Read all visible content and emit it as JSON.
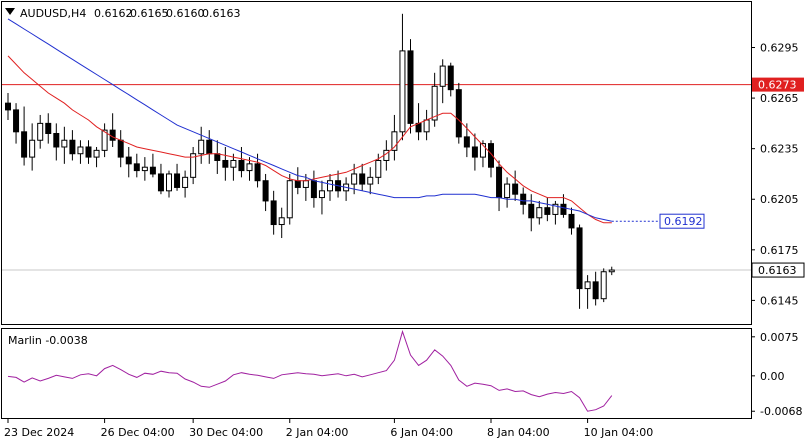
{
  "chart_data": [
    {
      "type": "candlestick",
      "symbol_label": "AUDUSD,H4",
      "ohlc_header": [
        "0.6162",
        "0.6165",
        "0.6160",
        "0.6163"
      ],
      "x_tick_labels": [
        "23 Dec 2024",
        "26 Dec 04:00",
        "30 Dec 04:00",
        "2 Jan 04:00",
        "6 Jan 04:00",
        "8 Jan 04:00",
        "10 Jan 04:00"
      ],
      "y_tick_labels": [
        "0.6295",
        "0.6265",
        "0.6235",
        "0.6205",
        "0.6175",
        "0.6145"
      ],
      "ylim": [
        0.6131,
        0.6322
      ],
      "grid": false,
      "horizontal_line": {
        "value": 0.6273,
        "label": "0.6273",
        "color": "#e02020"
      },
      "current_price": {
        "value": 0.6163,
        "label": "0.6163"
      },
      "ma_value_label": {
        "value": 0.6192,
        "label": "0.6192",
        "color": "#2030d0"
      },
      "candles": [
        [
          0.6262,
          0.6268,
          0.6252,
          0.6258
        ],
        [
          0.6258,
          0.6262,
          0.6238,
          0.6245
        ],
        [
          0.6245,
          0.626,
          0.6225,
          0.623
        ],
        [
          0.623,
          0.625,
          0.6222,
          0.624
        ],
        [
          0.624,
          0.6255,
          0.6235,
          0.625
        ],
        [
          0.625,
          0.6256,
          0.6238,
          0.6244
        ],
        [
          0.6244,
          0.625,
          0.6228,
          0.6236
        ],
        [
          0.6236,
          0.6248,
          0.6226,
          0.624
        ],
        [
          0.624,
          0.6246,
          0.6228,
          0.6232
        ],
        [
          0.6232,
          0.624,
          0.6226,
          0.6236
        ],
        [
          0.6236,
          0.624,
          0.6226,
          0.623
        ],
        [
          0.623,
          0.6236,
          0.6224,
          0.6234
        ],
        [
          0.6234,
          0.625,
          0.623,
          0.6246
        ],
        [
          0.6246,
          0.6256,
          0.6236,
          0.624
        ],
        [
          0.624,
          0.6246,
          0.6224,
          0.623
        ],
        [
          0.623,
          0.6236,
          0.6218,
          0.6226
        ],
        [
          0.6226,
          0.6232,
          0.6218,
          0.6222
        ],
        [
          0.6222,
          0.623,
          0.6216,
          0.6224
        ],
        [
          0.6224,
          0.6232,
          0.6218,
          0.622
        ],
        [
          0.622,
          0.6226,
          0.6208,
          0.621
        ],
        [
          0.621,
          0.6222,
          0.6206,
          0.622
        ],
        [
          0.622,
          0.6226,
          0.621,
          0.6212
        ],
        [
          0.6212,
          0.6222,
          0.6206,
          0.6218
        ],
        [
          0.6218,
          0.6236,
          0.6214,
          0.6232
        ],
        [
          0.6232,
          0.6248,
          0.6226,
          0.624
        ],
        [
          0.624,
          0.6246,
          0.6226,
          0.6232
        ],
        [
          0.6232,
          0.624,
          0.622,
          0.6228
        ],
        [
          0.6228,
          0.6236,
          0.6216,
          0.6224
        ],
        [
          0.6224,
          0.6232,
          0.6216,
          0.6228
        ],
        [
          0.6228,
          0.6236,
          0.6218,
          0.6222
        ],
        [
          0.6222,
          0.623,
          0.6216,
          0.6226
        ],
        [
          0.6226,
          0.6232,
          0.6212,
          0.6216
        ],
        [
          0.6216,
          0.622,
          0.6198,
          0.6204
        ],
        [
          0.6204,
          0.621,
          0.6184,
          0.619
        ],
        [
          0.619,
          0.62,
          0.6182,
          0.6194
        ],
        [
          0.6194,
          0.622,
          0.619,
          0.6216
        ],
        [
          0.6216,
          0.6224,
          0.6208,
          0.6212
        ],
        [
          0.6212,
          0.622,
          0.6204,
          0.6216
        ],
        [
          0.6216,
          0.6222,
          0.62,
          0.6206
        ],
        [
          0.6206,
          0.6216,
          0.6196,
          0.621
        ],
        [
          0.621,
          0.622,
          0.6204,
          0.6216
        ],
        [
          0.6216,
          0.6222,
          0.6206,
          0.621
        ],
        [
          0.621,
          0.6218,
          0.6204,
          0.6214
        ],
        [
          0.6214,
          0.6226,
          0.6208,
          0.622
        ],
        [
          0.622,
          0.6226,
          0.621,
          0.6214
        ],
        [
          0.6214,
          0.6224,
          0.6208,
          0.6218
        ],
        [
          0.6218,
          0.6232,
          0.6214,
          0.6228
        ],
        [
          0.6228,
          0.624,
          0.6222,
          0.6234
        ],
        [
          0.6234,
          0.6255,
          0.6228,
          0.6245
        ],
        [
          0.6245,
          0.6315,
          0.624,
          0.6293
        ],
        [
          0.6293,
          0.63,
          0.6244,
          0.625
        ],
        [
          0.625,
          0.6262,
          0.624,
          0.6245
        ],
        [
          0.6245,
          0.6258,
          0.624,
          0.6252
        ],
        [
          0.6252,
          0.628,
          0.6248,
          0.6272
        ],
        [
          0.6272,
          0.6288,
          0.6262,
          0.6284
        ],
        [
          0.6284,
          0.6286,
          0.6266,
          0.627
        ],
        [
          0.627,
          0.6274,
          0.6238,
          0.6242
        ],
        [
          0.6242,
          0.625,
          0.623,
          0.6236
        ],
        [
          0.6236,
          0.6244,
          0.6222,
          0.623
        ],
        [
          0.623,
          0.624,
          0.6224,
          0.6238
        ],
        [
          0.6238,
          0.624,
          0.6218,
          0.6224
        ],
        [
          0.6224,
          0.6228,
          0.6198,
          0.6206
        ],
        [
          0.6206,
          0.6218,
          0.62,
          0.6214
        ],
        [
          0.6214,
          0.6222,
          0.6204,
          0.6208
        ],
        [
          0.6208,
          0.6212,
          0.6196,
          0.6202
        ],
        [
          0.6202,
          0.6208,
          0.6186,
          0.6194
        ],
        [
          0.6194,
          0.6204,
          0.619,
          0.62
        ],
        [
          0.62,
          0.6206,
          0.6192,
          0.6196
        ],
        [
          0.6196,
          0.6204,
          0.619,
          0.6202
        ],
        [
          0.6202,
          0.6208,
          0.6194,
          0.6196
        ],
        [
          0.6196,
          0.62,
          0.6184,
          0.6188
        ],
        [
          0.6188,
          0.619,
          0.614,
          0.6152
        ],
        [
          0.6152,
          0.616,
          0.614,
          0.6156
        ],
        [
          0.6156,
          0.6162,
          0.6142,
          0.6146
        ],
        [
          0.6146,
          0.6164,
          0.6144,
          0.6162
        ],
        [
          0.6162,
          0.6165,
          0.616,
          0.6163
        ]
      ],
      "ma_red": [
        0.629,
        0.6285,
        0.628,
        0.6276,
        0.6272,
        0.6268,
        0.6265,
        0.6262,
        0.6258,
        0.6255,
        0.6252,
        0.6248,
        0.6245,
        0.6242,
        0.624,
        0.6238,
        0.6236,
        0.6235,
        0.6234,
        0.6233,
        0.6232,
        0.6231,
        0.623,
        0.623,
        0.6231,
        0.6232,
        0.6232,
        0.6231,
        0.623,
        0.6229,
        0.6228,
        0.6227,
        0.6225,
        0.6222,
        0.6219,
        0.6217,
        0.6216,
        0.6216,
        0.6217,
        0.6218,
        0.6219,
        0.622,
        0.6221,
        0.6223,
        0.6225,
        0.6227,
        0.6229,
        0.6232,
        0.6236,
        0.6242,
        0.6248,
        0.625,
        0.6252,
        0.6254,
        0.6256,
        0.6256,
        0.6252,
        0.6247,
        0.6242,
        0.6237,
        0.6232,
        0.6226,
        0.6221,
        0.6217,
        0.6213,
        0.621,
        0.6208,
        0.6206,
        0.6206,
        0.6206,
        0.6204,
        0.62,
        0.6196,
        0.6193,
        0.6191,
        0.6191
      ],
      "ma_blue": [
        0.6312,
        0.6309,
        0.6306,
        0.6303,
        0.63,
        0.6297,
        0.6294,
        0.6291,
        0.6288,
        0.6285,
        0.6282,
        0.6279,
        0.6276,
        0.6273,
        0.627,
        0.6267,
        0.6264,
        0.6261,
        0.6258,
        0.6255,
        0.6252,
        0.6249,
        0.6247,
        0.6245,
        0.6243,
        0.6241,
        0.6239,
        0.6237,
        0.6235,
        0.6233,
        0.6231,
        0.6229,
        0.6227,
        0.6225,
        0.6223,
        0.6221,
        0.6219,
        0.6218,
        0.6216,
        0.6215,
        0.6214,
        0.6213,
        0.6212,
        0.6211,
        0.621,
        0.6209,
        0.6208,
        0.6207,
        0.6206,
        0.6206,
        0.6206,
        0.6206,
        0.6207,
        0.6207,
        0.6208,
        0.6208,
        0.6208,
        0.6208,
        0.6208,
        0.6207,
        0.6206,
        0.6206,
        0.6205,
        0.6205,
        0.6204,
        0.6204,
        0.6203,
        0.6202,
        0.6201,
        0.62,
        0.6199,
        0.6198,
        0.6196,
        0.6194,
        0.6193,
        0.6192
      ],
      "ma_blue_projection": [
        0.6192,
        0.6192
      ]
    },
    {
      "type": "line",
      "indicator_label": "Marlin -0.0038",
      "y_tick_labels": [
        "0.0075",
        "0.00",
        "-0.0068"
      ],
      "ylim": [
        -0.0081,
        0.009
      ],
      "values": [
        -0.0001,
        -0.0003,
        -0.0012,
        -0.0004,
        -0.001,
        -0.0005,
        0.0001,
        -0.0002,
        -0.0005,
        0.0002,
        0.0004,
        0.0,
        0.0014,
        0.002,
        0.0012,
        0.0003,
        -0.0003,
        0.0005,
        0.0003,
        0.0009,
        0.0006,
        0.0005,
        -0.0006,
        -0.0012,
        -0.002,
        -0.0022,
        -0.0016,
        -0.001,
        0.0002,
        0.0006,
        0.0003,
        0.0001,
        -0.0002,
        -0.0005,
        0.0002,
        0.0004,
        0.0006,
        0.0004,
        0.0003,
        0.0,
        0.0002,
        0.0004,
        0.0,
        0.0003,
        -0.0002,
        0.0002,
        0.0006,
        0.001,
        0.003,
        0.0085,
        0.004,
        0.002,
        0.003,
        0.005,
        0.0038,
        0.002,
        -0.0008,
        -0.002,
        -0.0014,
        -0.0016,
        -0.0019,
        -0.0028,
        -0.0025,
        -0.003,
        -0.0029,
        -0.0036,
        -0.004,
        -0.0035,
        -0.0032,
        -0.0034,
        -0.003,
        -0.0042,
        -0.0068,
        -0.0065,
        -0.0058,
        -0.0038
      ],
      "color": "#a020a0",
      "grid": false
    }
  ]
}
